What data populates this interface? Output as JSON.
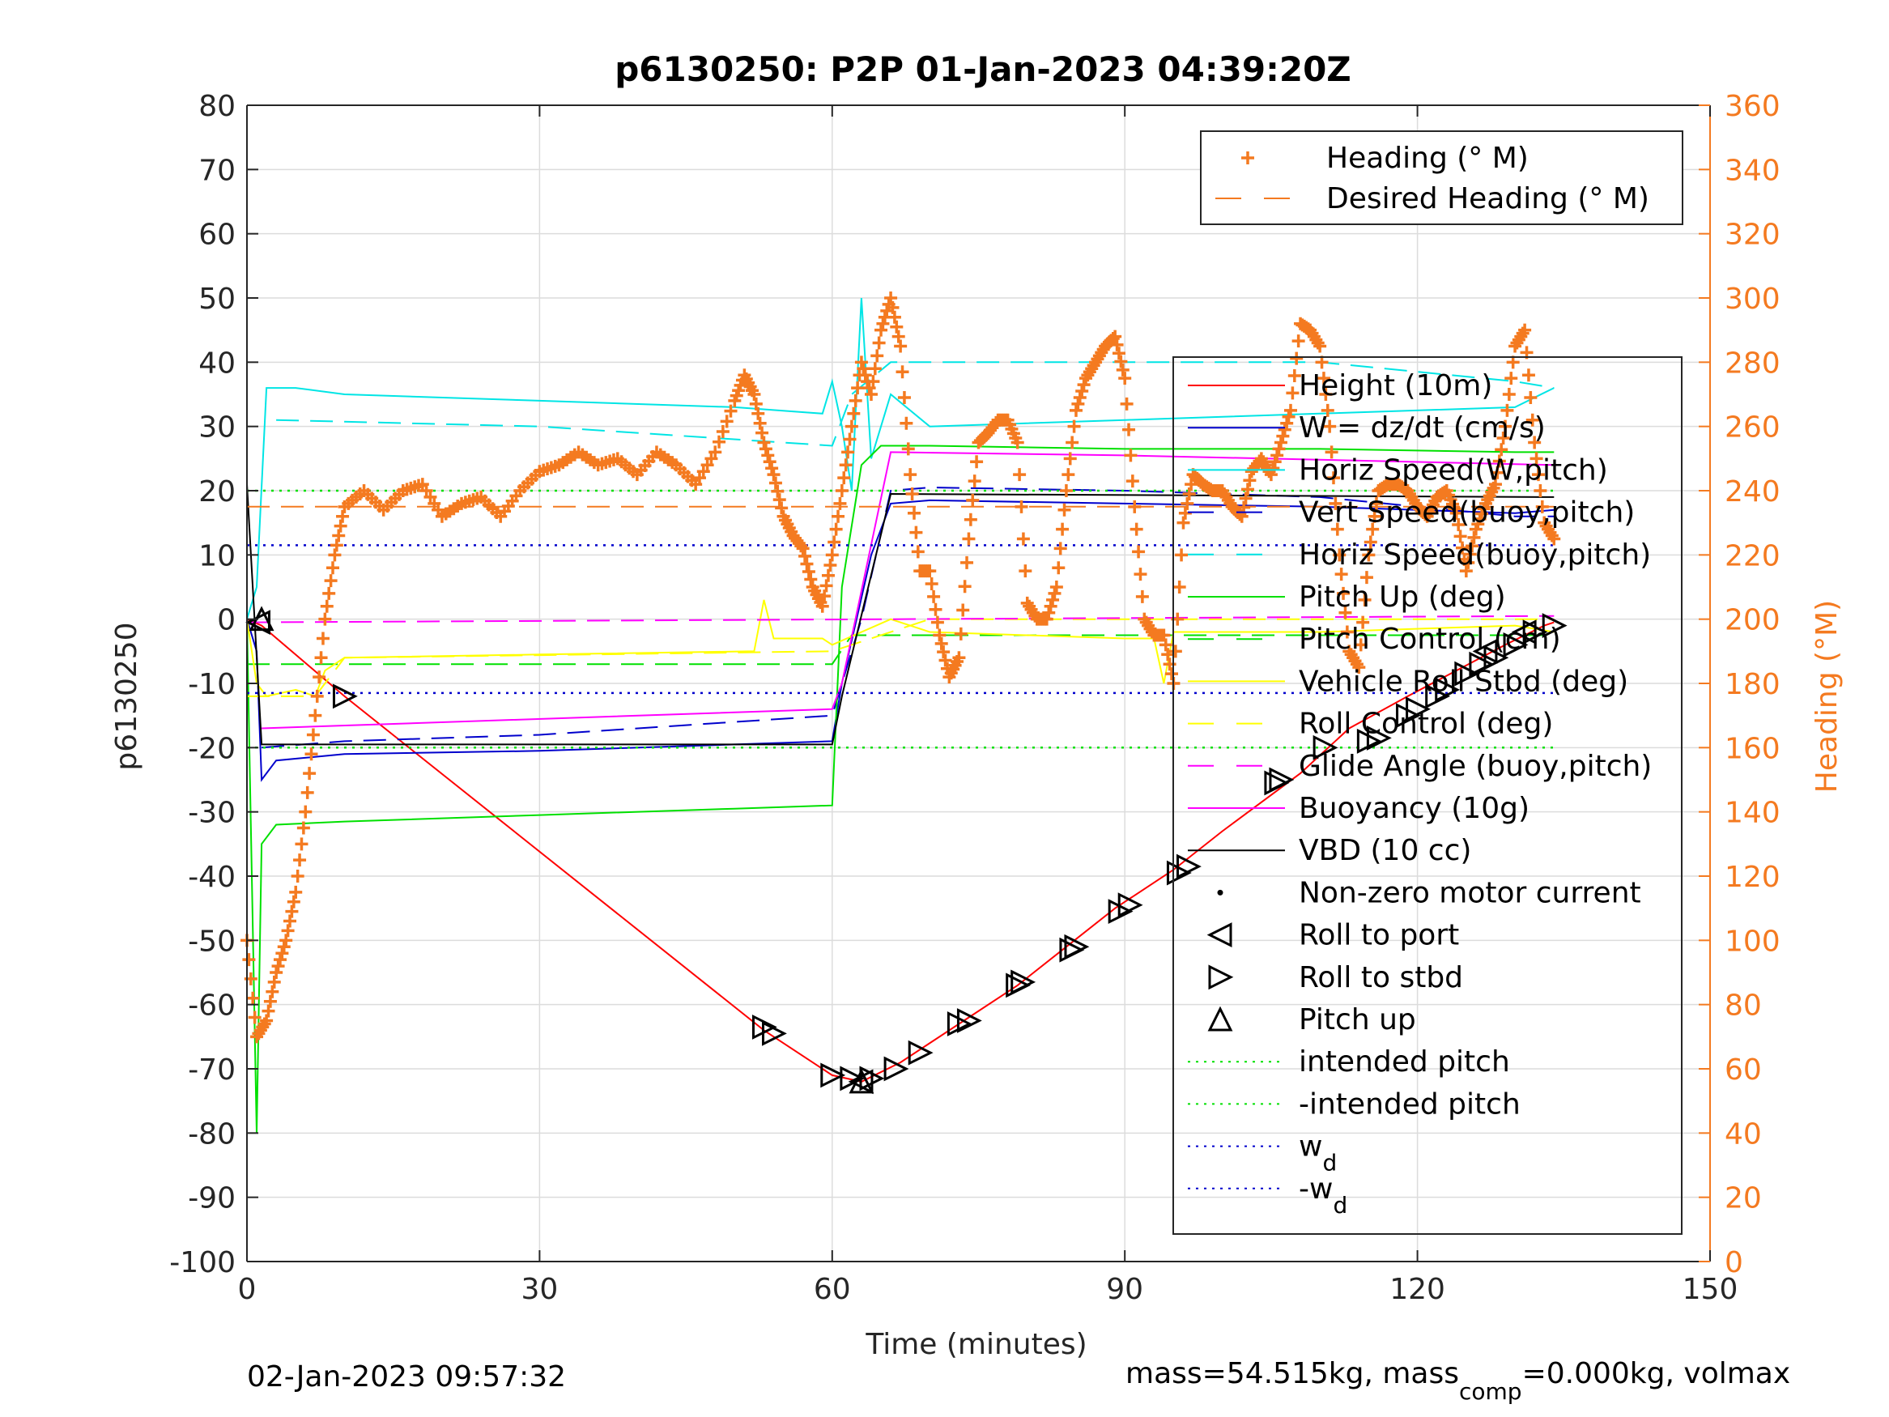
{
  "chart_data": {
    "type": "line",
    "title": "p6130250: P2P 01-Jan-2023 04:39:20Z",
    "xlabel": "Time (minutes)",
    "ylabel_left": "p6130250",
    "ylabel_right": "Heading (°M)",
    "xlim": [
      0,
      150
    ],
    "ylim_left": [
      -100,
      80
    ],
    "ylim_right": [
      0,
      360
    ],
    "xticks": [
      0,
      30,
      60,
      90,
      120,
      150
    ],
    "yticks_left": [
      80,
      70,
      60,
      50,
      40,
      30,
      20,
      10,
      0,
      -10,
      -20,
      -30,
      -40,
      -50,
      -60,
      -70,
      -80,
      -90,
      -100
    ],
    "yticks_right": [
      360,
      340,
      320,
      300,
      280,
      260,
      240,
      220,
      200,
      180,
      160,
      140,
      120,
      100,
      80,
      60,
      40,
      20,
      0
    ],
    "grid": true,
    "footer_left": "02-Jan-2023 09:57:32",
    "footer_right": {
      "pre": "mass=54.515kg, mass",
      "sub": "comp",
      "post": "=0.000kg, volmax"
    },
    "legend_heading": [
      {
        "label": "Heading (° M)",
        "color": "#f47a20",
        "style": "plus"
      },
      {
        "label": "Desired Heading (° M)",
        "color": "#f47a20",
        "style": "dash"
      }
    ],
    "legend_main": [
      {
        "label": "Height (10m)",
        "color": "#ff0000",
        "style": "solid"
      },
      {
        "label": "W = dz/dt (cm/s)",
        "color": "#0000cc",
        "style": "solid"
      },
      {
        "label": "Horiz Speed(W,pitch)",
        "color": "#00e5e5",
        "style": "solid"
      },
      {
        "label": "Vert Speed(buoy,pitch)",
        "color": "#0000cc",
        "style": "dash"
      },
      {
        "label": "Horiz Speed(buoy,pitch)",
        "color": "#00e5e5",
        "style": "dash"
      },
      {
        "label": "Pitch Up (deg)",
        "color": "#00e000",
        "style": "solid"
      },
      {
        "label": "Pitch Control (cm)",
        "color": "#00e000",
        "style": "dash"
      },
      {
        "label": "Vehicle Roll Stbd (deg)",
        "color": "#ffff00",
        "style": "solid"
      },
      {
        "label": "Roll Control (deg)",
        "color": "#ffff00",
        "style": "dash"
      },
      {
        "label": "Glide Angle (buoy,pitch)",
        "color": "#ff00ff",
        "style": "dash"
      },
      {
        "label": "Buoyancy (10g)",
        "color": "#ff00ff",
        "style": "solid"
      },
      {
        "label": "VBD (10 cc)",
        "color": "#000000",
        "style": "solid"
      },
      {
        "label": "Non-zero motor current",
        "color": "#000000",
        "style": "dot"
      },
      {
        "label": "Roll to port",
        "color": "#000000",
        "style": "tri-left"
      },
      {
        "label": "Roll to stbd",
        "color": "#000000",
        "style": "tri-right"
      },
      {
        "label": "Pitch up",
        "color": "#000000",
        "style": "tri-up"
      },
      {
        "label": "intended pitch",
        "color": "#00e000",
        "style": "dotted"
      },
      {
        "label": "-intended pitch",
        "color": "#00e000",
        "style": "dotted"
      },
      {
        "label": "w",
        "sub": "d",
        "color": "#0000cc",
        "style": "dotted"
      },
      {
        "label": "-w",
        "sub": "d",
        "color": "#0000cc",
        "style": "dotted"
      }
    ],
    "series": [
      {
        "name": "Height (10m)",
        "color": "#ff0000",
        "style": "solid",
        "axis": "left",
        "x": [
          0,
          1.5,
          10,
          53,
          60,
          63,
          67,
          73,
          79,
          84,
          89,
          95,
          100,
          108,
          113,
          119,
          124,
          129,
          133,
          134
        ],
        "y": [
          0,
          -1,
          -12,
          -64,
          -71,
          -72,
          -69,
          -63,
          -57,
          -51,
          -45,
          -39,
          -33,
          -24,
          -17,
          -12,
          -8,
          -4,
          -1,
          -0.5
        ]
      },
      {
        "name": "W = dz/dt (cm/s)",
        "color": "#0000cc",
        "style": "solid",
        "axis": "left",
        "x": [
          0,
          1,
          1.5,
          3,
          10,
          30,
          50,
          60,
          61,
          64,
          66,
          70,
          90,
          110,
          120,
          130,
          134
        ],
        "y": [
          0,
          -5,
          -25,
          -22,
          -21,
          -20.5,
          -19.5,
          -19,
          -10,
          10,
          18,
          18.5,
          18,
          17.5,
          17,
          16.5,
          17
        ]
      },
      {
        "name": "Vert Speed(buoy,pitch)",
        "color": "#0000cc",
        "style": "dash",
        "axis": "left",
        "x": [
          1.5,
          10,
          30,
          50,
          60,
          63,
          66,
          70,
          90,
          110,
          130,
          134
        ],
        "y": [
          -20,
          -19,
          -18,
          -16,
          -15,
          0,
          20,
          20.5,
          20,
          19,
          16,
          16
        ]
      },
      {
        "name": "Horiz Speed(W,pitch)",
        "color": "#00e5e5",
        "style": "solid",
        "axis": "left",
        "x": [
          0,
          1,
          2,
          5,
          10,
          30,
          50,
          59,
          60,
          61,
          62,
          63,
          64,
          66,
          70,
          90,
          110,
          130,
          134
        ],
        "y": [
          0,
          5,
          36,
          36,
          35,
          34,
          33,
          32,
          37,
          30,
          20,
          50,
          25,
          35,
          30,
          31,
          32,
          33,
          36
        ]
      },
      {
        "name": "Horiz Speed(buoy,pitch)",
        "color": "#00e5e5",
        "style": "dash",
        "axis": "left",
        "x": [
          3,
          30,
          60,
          62,
          66,
          70,
          90,
          110,
          130,
          134
        ],
        "y": [
          31,
          30,
          27,
          35,
          40,
          40,
          40,
          40,
          37,
          36
        ]
      },
      {
        "name": "Pitch Up (deg)",
        "color": "#00e000",
        "style": "solid",
        "axis": "left",
        "x": [
          0,
          1,
          1.5,
          3,
          10,
          30,
          50,
          60,
          61,
          63,
          65,
          70,
          90,
          110,
          130,
          134
        ],
        "y": [
          0,
          -80,
          -35,
          -32,
          -31.5,
          -30.5,
          -29.5,
          -29,
          5,
          24,
          27,
          27,
          26.5,
          26.5,
          26,
          26
        ]
      },
      {
        "name": "Pitch Control (cm)",
        "color": "#00e000",
        "style": "dash",
        "axis": "left",
        "x": [
          0,
          60,
          62,
          134
        ],
        "y": [
          -7,
          -7,
          -2.5,
          -2.5
        ]
      },
      {
        "name": "Vehicle Roll Stbd (deg)",
        "color": "#ffff00",
        "style": "solid",
        "axis": "left",
        "x": [
          0,
          1,
          2,
          5,
          7,
          8,
          10,
          30,
          52,
          53,
          54,
          59,
          60,
          66,
          70,
          90,
          93,
          94,
          95,
          110,
          130,
          134
        ],
        "y": [
          0,
          -10,
          -12,
          -11,
          -12,
          -8,
          -6,
          -5.5,
          -5,
          3,
          -3,
          -3,
          -4,
          0,
          -2,
          -3,
          -3,
          -10,
          -2,
          -2,
          -1,
          -2
        ]
      },
      {
        "name": "Roll Control (deg)",
        "color": "#ffff00",
        "style": "dash",
        "axis": "left",
        "x": [
          0,
          7,
          10,
          60,
          70,
          134
        ],
        "y": [
          -12,
          -12,
          -6,
          -5,
          0,
          0
        ]
      },
      {
        "name": "Glide Angle (buoy,pitch)",
        "color": "#ff00ff",
        "style": "dash",
        "axis": "left",
        "x": [
          0,
          134
        ],
        "y": [
          -0.5,
          0.5
        ]
      },
      {
        "name": "Buoyancy (10g)",
        "color": "#ff00ff",
        "style": "solid",
        "axis": "left",
        "x": [
          1.5,
          60,
          61,
          66,
          90,
          134
        ],
        "y": [
          -17,
          -14,
          -10,
          26,
          25.5,
          24
        ]
      },
      {
        "name": "VBD (10 cc)",
        "color": "#000000",
        "style": "solid",
        "axis": "left",
        "x": [
          0,
          1.5,
          60,
          61,
          66,
          134
        ],
        "y": [
          21,
          -19.5,
          -19.5,
          -12,
          19.5,
          19
        ]
      },
      {
        "name": "intended pitch",
        "color": "#00e000",
        "style": "dotted",
        "axis": "left",
        "x": [
          0,
          134
        ],
        "y": [
          20,
          20
        ]
      },
      {
        "name": "-intended pitch",
        "color": "#00e000",
        "style": "dotted",
        "axis": "left",
        "x": [
          0,
          134
        ],
        "y": [
          -20,
          -20
        ]
      },
      {
        "name": "w_d",
        "color": "#0000cc",
        "style": "dotted",
        "axis": "left",
        "x": [
          0,
          134
        ],
        "y": [
          11.5,
          11.5
        ]
      },
      {
        "name": "-w_d",
        "color": "#0000cc",
        "style": "dotted",
        "axis": "left",
        "x": [
          0,
          134
        ],
        "y": [
          -11.5,
          -11.5
        ]
      },
      {
        "name": "Desired Heading (° M)",
        "color": "#f47a20",
        "style": "dash",
        "axis": "right",
        "x": [
          0,
          134
        ],
        "y": [
          235,
          235
        ]
      },
      {
        "name": "Heading (° M)",
        "color": "#f47a20",
        "style": "plus",
        "axis": "right",
        "x": [
          0,
          1,
          2,
          3,
          4,
          5,
          6,
          7,
          8,
          9,
          10,
          12,
          14,
          16,
          18,
          20,
          22,
          24,
          26,
          28,
          30,
          32,
          34,
          36,
          38,
          40,
          42,
          44,
          46,
          48,
          50,
          51,
          52,
          53,
          54,
          55,
          56,
          57,
          58,
          59,
          60,
          61,
          62,
          63,
          64,
          65,
          66,
          67,
          68,
          69,
          70,
          71,
          72,
          73,
          74,
          75,
          76,
          77,
          78,
          79,
          80,
          81,
          82,
          83,
          84,
          85,
          86,
          87,
          88,
          89,
          90,
          91,
          92,
          93,
          94,
          95,
          96,
          97,
          98,
          99,
          100,
          101,
          102,
          103,
          104,
          105,
          106,
          107,
          108,
          109,
          110,
          111,
          112,
          113,
          114,
          115,
          116,
          117,
          118,
          119,
          120,
          121,
          122,
          123,
          124,
          125,
          126,
          127,
          128,
          129,
          130,
          131,
          132,
          133,
          134
        ],
        "y": [
          100,
          70,
          75,
          90,
          100,
          115,
          140,
          170,
          200,
          220,
          235,
          240,
          234,
          240,
          242,
          232,
          236,
          238,
          232,
          240,
          246,
          248,
          252,
          248,
          250,
          245,
          252,
          248,
          242,
          252,
          268,
          276,
          270,
          255,
          245,
          232,
          226,
          222,
          210,
          204,
          220,
          240,
          260,
          280,
          270,
          290,
          300,
          285,
          245,
          215,
          215,
          195,
          182,
          188,
          225,
          255,
          258,
          262,
          262,
          255,
          205,
          200,
          200,
          210,
          240,
          265,
          275,
          280,
          285,
          288,
          275,
          235,
          200,
          195,
          195,
          180,
          230,
          245,
          242,
          240,
          240,
          235,
          232,
          246,
          250,
          245,
          255,
          265,
          292,
          290,
          285,
          260,
          220,
          190,
          185,
          220,
          240,
          242,
          242,
          240,
          235,
          232,
          238,
          240,
          233,
          215,
          228,
          236,
          242,
          260,
          285,
          290,
          255,
          230,
          225
        ]
      }
    ],
    "markers": {
      "roll_to_port": [
        [
          1.2,
          -0.5
        ],
        [
          63,
          -72
        ],
        [
          127,
          -5
        ],
        [
          131,
          -2
        ]
      ],
      "roll_to_stbd": [
        [
          10,
          -12
        ],
        [
          53,
          -63.5
        ],
        [
          54,
          -64.5
        ],
        [
          60,
          -71
        ],
        [
          62,
          -71.5
        ],
        [
          64,
          -71.5
        ],
        [
          66.5,
          -70
        ],
        [
          69,
          -67.5
        ],
        [
          73,
          -63
        ],
        [
          74,
          -62.5
        ],
        [
          79,
          -57
        ],
        [
          79.5,
          -56.5
        ],
        [
          84.5,
          -51.5
        ],
        [
          85,
          -51
        ],
        [
          89.5,
          -45.5
        ],
        [
          90.5,
          -44.5
        ],
        [
          95.5,
          -39.5
        ],
        [
          96.5,
          -38.5
        ],
        [
          105.5,
          -25.5
        ],
        [
          106,
          -25
        ],
        [
          110.5,
          -20
        ],
        [
          115,
          -19
        ],
        [
          116,
          -18.5
        ],
        [
          119,
          -15
        ],
        [
          120,
          -14
        ],
        [
          122,
          -12
        ],
        [
          123,
          -11
        ],
        [
          125,
          -8.5
        ],
        [
          126.5,
          -7
        ],
        [
          128,
          -6
        ],
        [
          130,
          -4
        ],
        [
          132,
          -2
        ],
        [
          134,
          -1
        ]
      ],
      "pitch_up": [
        [
          1.5,
          0
        ],
        [
          63,
          -72
        ]
      ]
    }
  }
}
